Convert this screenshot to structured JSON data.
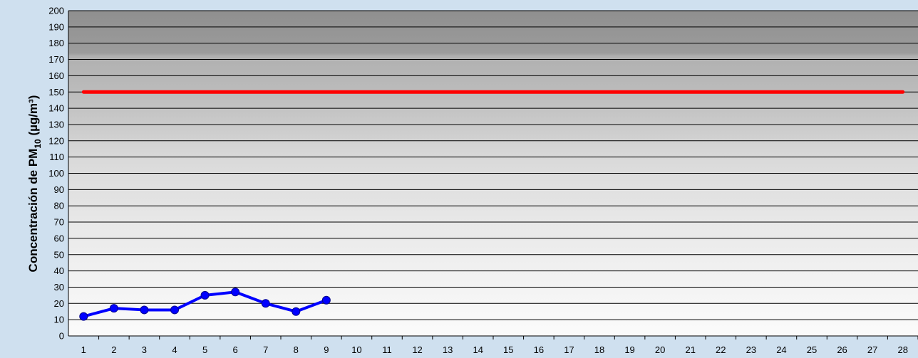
{
  "chart_data": {
    "type": "line",
    "xlabel": "",
    "ylabel_parts": {
      "prefix": "Concentración de PM",
      "sub": "10",
      "suffix": " (µg/m³)"
    },
    "ylim": [
      0,
      200
    ],
    "y_ticks": [
      0,
      10,
      20,
      30,
      40,
      50,
      60,
      70,
      80,
      90,
      100,
      110,
      120,
      130,
      140,
      150,
      160,
      170,
      180,
      190,
      200
    ],
    "x_ticks": [
      1,
      2,
      3,
      4,
      5,
      6,
      7,
      8,
      9,
      10,
      11,
      12,
      13,
      14,
      15,
      16,
      17,
      18,
      19,
      20,
      21,
      22,
      23,
      24,
      25,
      26,
      27,
      28
    ],
    "grid": true,
    "series": [
      {
        "x": [
          1,
          2,
          3,
          4,
          5,
          6,
          7,
          8,
          9
        ],
        "values": [
          12,
          17,
          16,
          16,
          25,
          27,
          20,
          15,
          22
        ],
        "color": "#0000ff"
      },
      {
        "x": [
          1,
          28
        ],
        "values": [
          150,
          150
        ],
        "color": "#ff0000"
      }
    ]
  }
}
